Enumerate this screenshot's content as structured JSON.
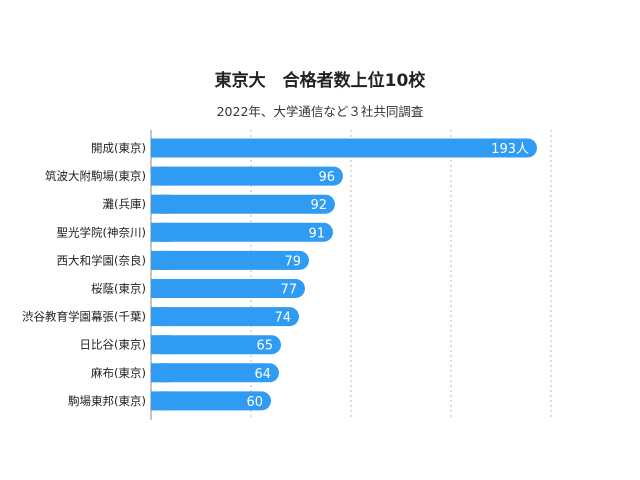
{
  "chart_data": {
    "type": "bar",
    "orientation": "horizontal",
    "title": "東京大　合格者数上位10校",
    "subtitle": "2022年、大学通信など３社共同調査",
    "categories": [
      "開成(東京)",
      "筑波大附駒場(東京)",
      "灘(兵庫)",
      "聖光学院(神奈川)",
      "西大和学園(奈良)",
      "桜蔭(東京)",
      "渋谷教育学園幕張(千葉)",
      "日比谷(東京)",
      "麻布(東京)",
      "駒場東邦(東京)"
    ],
    "values": [
      193,
      96,
      92,
      91,
      79,
      77,
      74,
      65,
      64,
      60
    ],
    "value_labels": [
      "193人",
      "96",
      "92",
      "91",
      "79",
      "77",
      "74",
      "65",
      "64",
      "60"
    ],
    "xlim": [
      0,
      200
    ],
    "grid": true,
    "bar_color": "#2f9bf3",
    "grid_color": "#b8b8b8"
  }
}
